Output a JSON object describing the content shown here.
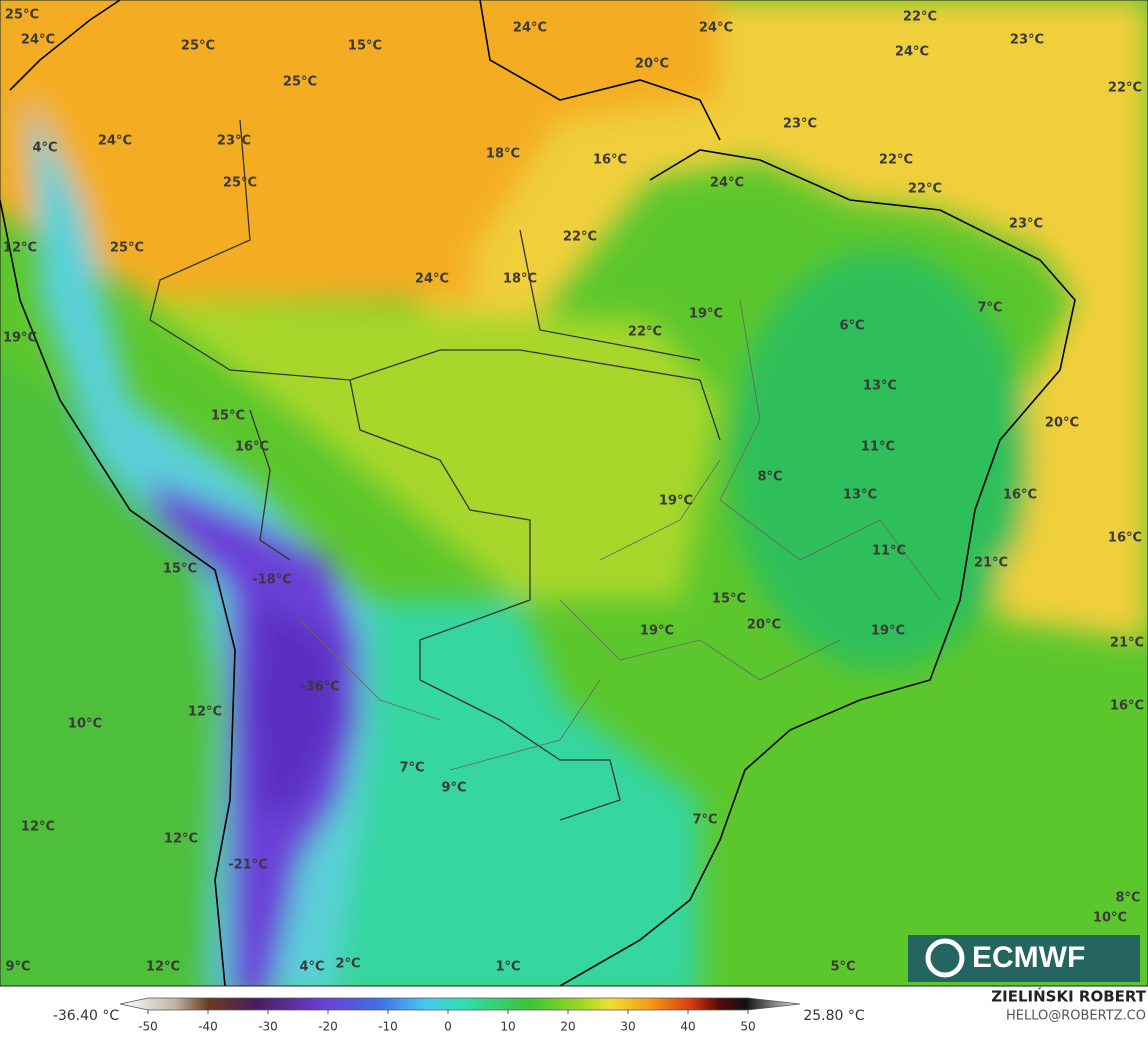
{
  "map_labels": [
    "25°C",
    "24°C",
    "25°C",
    "15°C",
    "24°C",
    "24°C",
    "22°C",
    "24°C",
    "23°C",
    "22°C",
    "20°C",
    "25°C",
    "4°C",
    "24°C",
    "23°C",
    "25°C",
    "23°C",
    "18°C",
    "16°C",
    "22°C",
    "24°C",
    "22°C",
    "12°C",
    "25°C",
    "22°C",
    "23°C",
    "18°C",
    "24°C",
    "7°C",
    "19°C",
    "6°C",
    "22°C",
    "19°C",
    "13°C",
    "15°C",
    "20°C",
    "16°C",
    "11°C",
    "8°C",
    "16°C",
    "19°C",
    "13°C",
    "16°C",
    "11°C",
    "21°C",
    "15°C",
    "-18°C",
    "15°C",
    "20°C",
    "19°C",
    "19°C",
    "21°C",
    "-36°C",
    "12°C",
    "10°C",
    "16°C",
    "7°C",
    "9°C",
    "7°C",
    "12°C",
    "12°C",
    "-21°C",
    "8°C",
    "10°C",
    "9°C",
    "12°C",
    "4°C",
    "2°C",
    "1°C",
    "5°C"
  ],
  "colorbar": {
    "min_label": "-36.40 °C",
    "max_label": "25.80 °C",
    "ticks": [
      -50,
      -40,
      -30,
      -20,
      -10,
      0,
      10,
      20,
      30,
      40,
      50
    ]
  },
  "logo": "ECMWF",
  "credit": {
    "name": "ZIELIŃSKI ROBERT",
    "email": "HELLO@ROBERTZ.CO"
  }
}
